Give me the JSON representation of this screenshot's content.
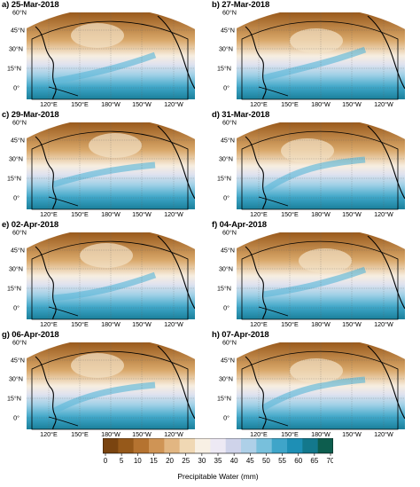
{
  "panels": [
    {
      "title": "a) 25-Mar-2018"
    },
    {
      "title": "b) 27-Mar-2018"
    },
    {
      "title": "c) 29-Mar-2018"
    },
    {
      "title": "d) 31-Mar-2018"
    },
    {
      "title": "e) 02-Apr-2018"
    },
    {
      "title": "f) 04-Apr-2018"
    },
    {
      "title": "g) 06-Apr-2018"
    },
    {
      "title": "h) 07-Apr-2018"
    }
  ],
  "lat_labels": [
    "60°N",
    "45°N",
    "30°N",
    "15°N",
    "0°"
  ],
  "lon_labels": [
    "120°E",
    "150°E",
    "180°W",
    "150°W",
    "120°W"
  ],
  "colorbar": {
    "ticks": [
      "0",
      "5",
      "10",
      "15",
      "20",
      "25",
      "30",
      "35",
      "40",
      "45",
      "50",
      "55",
      "60",
      "65",
      "70"
    ],
    "label": "Precipitable Water (mm)",
    "colors": [
      "#7a4410",
      "#96591a",
      "#b57330",
      "#cf9455",
      "#e2b682",
      "#f0d8b4",
      "#f8f0e4",
      "#ede9f4",
      "#cfd3ea",
      "#aed0e8",
      "#78c0dc",
      "#3fa5c9",
      "#1e8fb5",
      "#13788c",
      "#0d5d4e"
    ]
  }
}
